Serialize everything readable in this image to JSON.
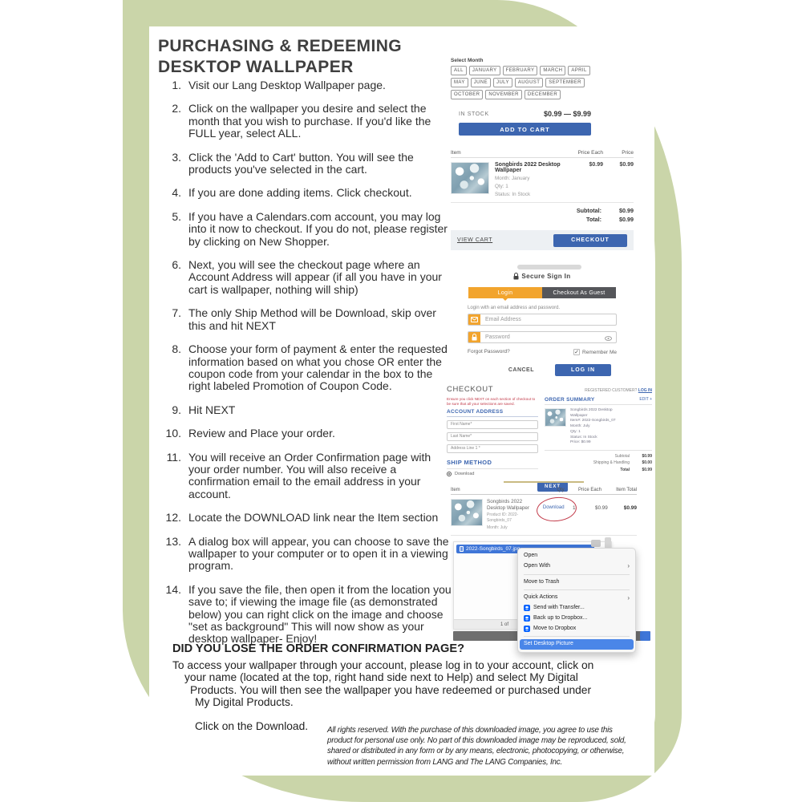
{
  "page": {
    "title_line1": "PURCHASING & REDEEMING",
    "title_line2": "DESKTOP WALLPAPER"
  },
  "steps": [
    "Visit our Lang Desktop Wallpaper page.",
    "Click on the wallpaper you desire and select the month that you wish to purchase. If you'd like the FULL year, select ALL.",
    "Click the 'Add to Cart' button. You will see the products you've selected in the cart.",
    "If you are done adding items. Click checkout.",
    "If you have a Calendars.com account, you may log into it now to checkout. If you do not, please register by clicking on New Shopper.",
    "Next, you will see the checkout page where an Account Address will appear (if all you have in your cart is wallpaper, nothing will ship)",
    "The only Ship Method will be Download, skip over this and hit NEXT",
    "Choose your form of payment & enter the requested information based on what you chose OR enter the coupon code from your calendar in the box to the right labeled Promotion of Coupon Code.",
    "Hit NEXT",
    "Review and Place your order.",
    "You will receive an Order Confirmation page with your order number. You will also receive a confirmation email to the email address in your account.",
    "Locate the DOWNLOAD link near the Item section",
    "A dialog box will appear, you can choose to save the wallpaper to your computer or to open it in a viewing program.",
    "If you save the file, then open it from the location you save to; if viewing the image file (as demonstrated below) you can right click on the image and choose \"set as background\" This will now show as your desktop wallpaper- Enjoy!"
  ],
  "product_panel": {
    "select_month_label": "Select Month",
    "month_rows": [
      [
        "ALL",
        "JANUARY",
        "FEBRUARY",
        "MARCH",
        "APRIL"
      ],
      [
        "MAY",
        "JUNE",
        "JULY",
        "AUGUST",
        "SEPTEMBER"
      ],
      [
        "OCTOBER",
        "NOVEMBER",
        "DECEMBER"
      ]
    ],
    "stock_status": "IN STOCK",
    "price_range": "$0.99 — $9.99",
    "add_to_cart": "ADD TO CART"
  },
  "cart_panel": {
    "header_item": "Item",
    "header_price_each": "Price Each",
    "header_price": "Price",
    "item_name": "Songbirds 2022 Desktop Wallpaper",
    "item_month": "Month: January",
    "item_qty": "Qty: 1",
    "item_status": "Status: In Stock",
    "price_each": "$0.99",
    "price": "$0.99",
    "subtotal_label": "Subtotal:",
    "subtotal": "$0.99",
    "total_label": "Total:",
    "total": "$0.99",
    "view_cart": "VIEW CART",
    "checkout": "CHECKOUT"
  },
  "signin_panel": {
    "title": "Secure Sign In",
    "tab_login": "Login",
    "tab_guest": "Checkout As Guest",
    "caption": "Login with an email address and password.",
    "email_placeholder": "Email Address",
    "password_placeholder": "Password",
    "forgot": "Forgot Password?",
    "remember": "Remember Me",
    "remember_check": "✓",
    "cancel": "CANCEL",
    "login": "LOG IN"
  },
  "checkout_panel": {
    "title": "CHECKOUT",
    "registered": "REGISTERED CUSTOMER?",
    "login_link": "LOG IN",
    "warning": "Ensure you click NEXT on each section of checkout to be sure that all your selections are saved.",
    "account_address": "ACCOUNT ADDRESS",
    "fields": [
      "First Name*",
      "Last Name*",
      "Address Line 1 *"
    ],
    "ship_method": "SHIP METHOD",
    "ship_option": "Download",
    "order_summary": "ORDER SUMMARY",
    "edit": "EDIT +",
    "summary_item_lines": [
      "Songbirds 2022 Desktop",
      "Wallpaper",
      "Item#: 2022-Songbirds_07",
      "Month: July",
      "Qty: 1",
      "Status: In Stock",
      "Price: $0.99"
    ],
    "totals": [
      [
        "Subtotal",
        "$0.99"
      ],
      [
        "Shipping & Handling",
        "$0.00"
      ],
      [
        "Total",
        "$0.99"
      ]
    ],
    "next": "NEXT"
  },
  "download_panel": {
    "header_item": "Item",
    "header_qty": "Qty",
    "header_price_each": "Price Each",
    "header_item_total": "Item Total",
    "item_name": "Songbirds 2022 Desktop Wallpaper",
    "product_id": "Product ID: 2022-Songbirds_07",
    "month": "Month: July",
    "download_link": "Download",
    "qty": "1",
    "price_each": "$0.99",
    "item_total": "$0.99"
  },
  "finder": {
    "filename": "2022-Songbirds_07.jpg",
    "page_indicator": "1 of",
    "menu": [
      {
        "label": "Open"
      },
      {
        "label": "Open With",
        "submenu": true
      },
      {
        "sep": true
      },
      {
        "label": "Move to Trash"
      },
      {
        "sep": true
      },
      {
        "label": "Quick Actions",
        "submenu": true
      },
      {
        "label": "Send with Transfer...",
        "icon": "dropbox"
      },
      {
        "label": "Back up to Dropbox...",
        "icon": "dropbox"
      },
      {
        "label": "Move to Dropbox",
        "icon": "dropbox"
      },
      {
        "sep": true
      },
      {
        "label": "Set Desktop Picture",
        "highlighted": true
      }
    ]
  },
  "lost_page": {
    "heading": "DID YOU LOSE THE ORDER CONFIRMATION PAGE?",
    "lines": [
      "To access your wallpaper through your account, please log in to your account, click on",
      "your name (located at the top, right hand side next to Help) and select My Digital",
      "Products. You will then see the wallpaper you have redeemed or purchased under",
      "My Digital Products."
    ],
    "click_line": "Click on the Download."
  },
  "legal_lines": [
    "All rights reserved. With the purchase of this downloaded image, you agree to use this",
    "product for personal use only. No part of this downloaded image may be reproduced, sold,",
    "shared or distributed in any form or by any means, electronic, photocopying, or otherwise,",
    "without written permission from LANG and The LANG Companies, Inc."
  ],
  "colors": {
    "accent_green": "#cad5a9",
    "button_blue": "#3d66b0",
    "tab_orange": "#f2a42d",
    "guest_tab_gray": "#55565a",
    "alert_red": "#c23b4a",
    "mac_selection_blue": "#3f76d8",
    "menu_highlight_blue": "#4a86e8",
    "dropbox_blue": "#0061fe"
  }
}
